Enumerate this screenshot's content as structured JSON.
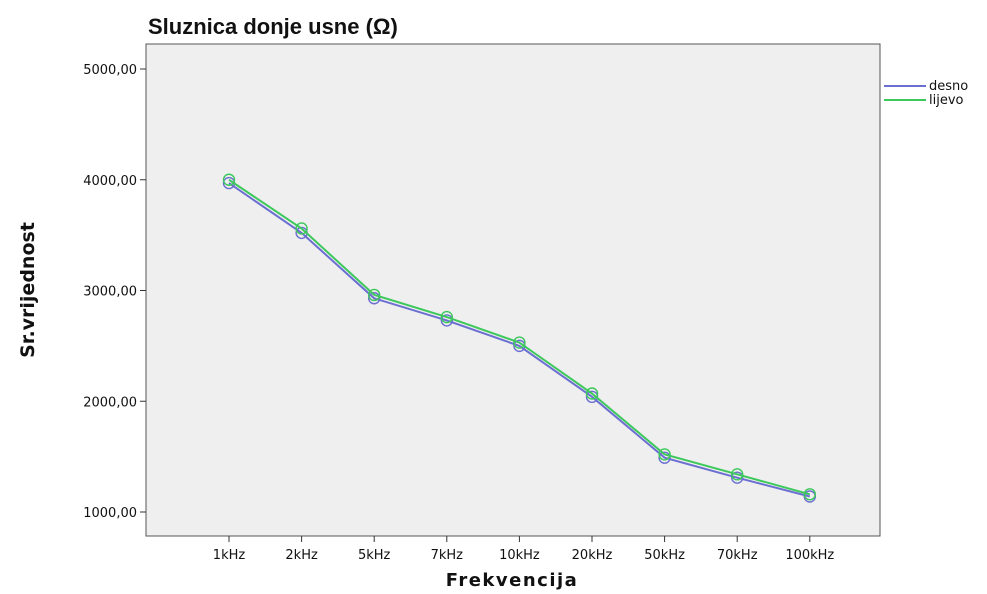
{
  "chart_data": {
    "type": "line",
    "title": "Sluznica donje usne (Ω)",
    "xlabel": "Frekvencija",
    "ylabel": "Sr.vrijednost",
    "categories": [
      "1kHz",
      "2kHz",
      "5kHz",
      "7kHz",
      "10kHz",
      "20kHz",
      "50kHz",
      "70kHz",
      "100kHz"
    ],
    "ylim": [
      900,
      5250
    ],
    "yticks": [
      1000,
      2000,
      3000,
      4000,
      5000
    ],
    "ytick_labels": [
      "1000,00",
      "2000,00",
      "3000,00",
      "4000,00",
      "5000,00"
    ],
    "grid": false,
    "legend_position": "top-right outside",
    "background": "#efefef",
    "series": [
      {
        "name": "desno",
        "color": "#6b6fd1",
        "values": [
          3970,
          3520,
          2930,
          2730,
          2500,
          2040,
          1490,
          1310,
          1140
        ]
      },
      {
        "name": "lijevo",
        "color": "#3cc85a",
        "values": [
          4000,
          3560,
          2960,
          2760,
          2530,
          2070,
          1520,
          1340,
          1160
        ]
      }
    ]
  }
}
